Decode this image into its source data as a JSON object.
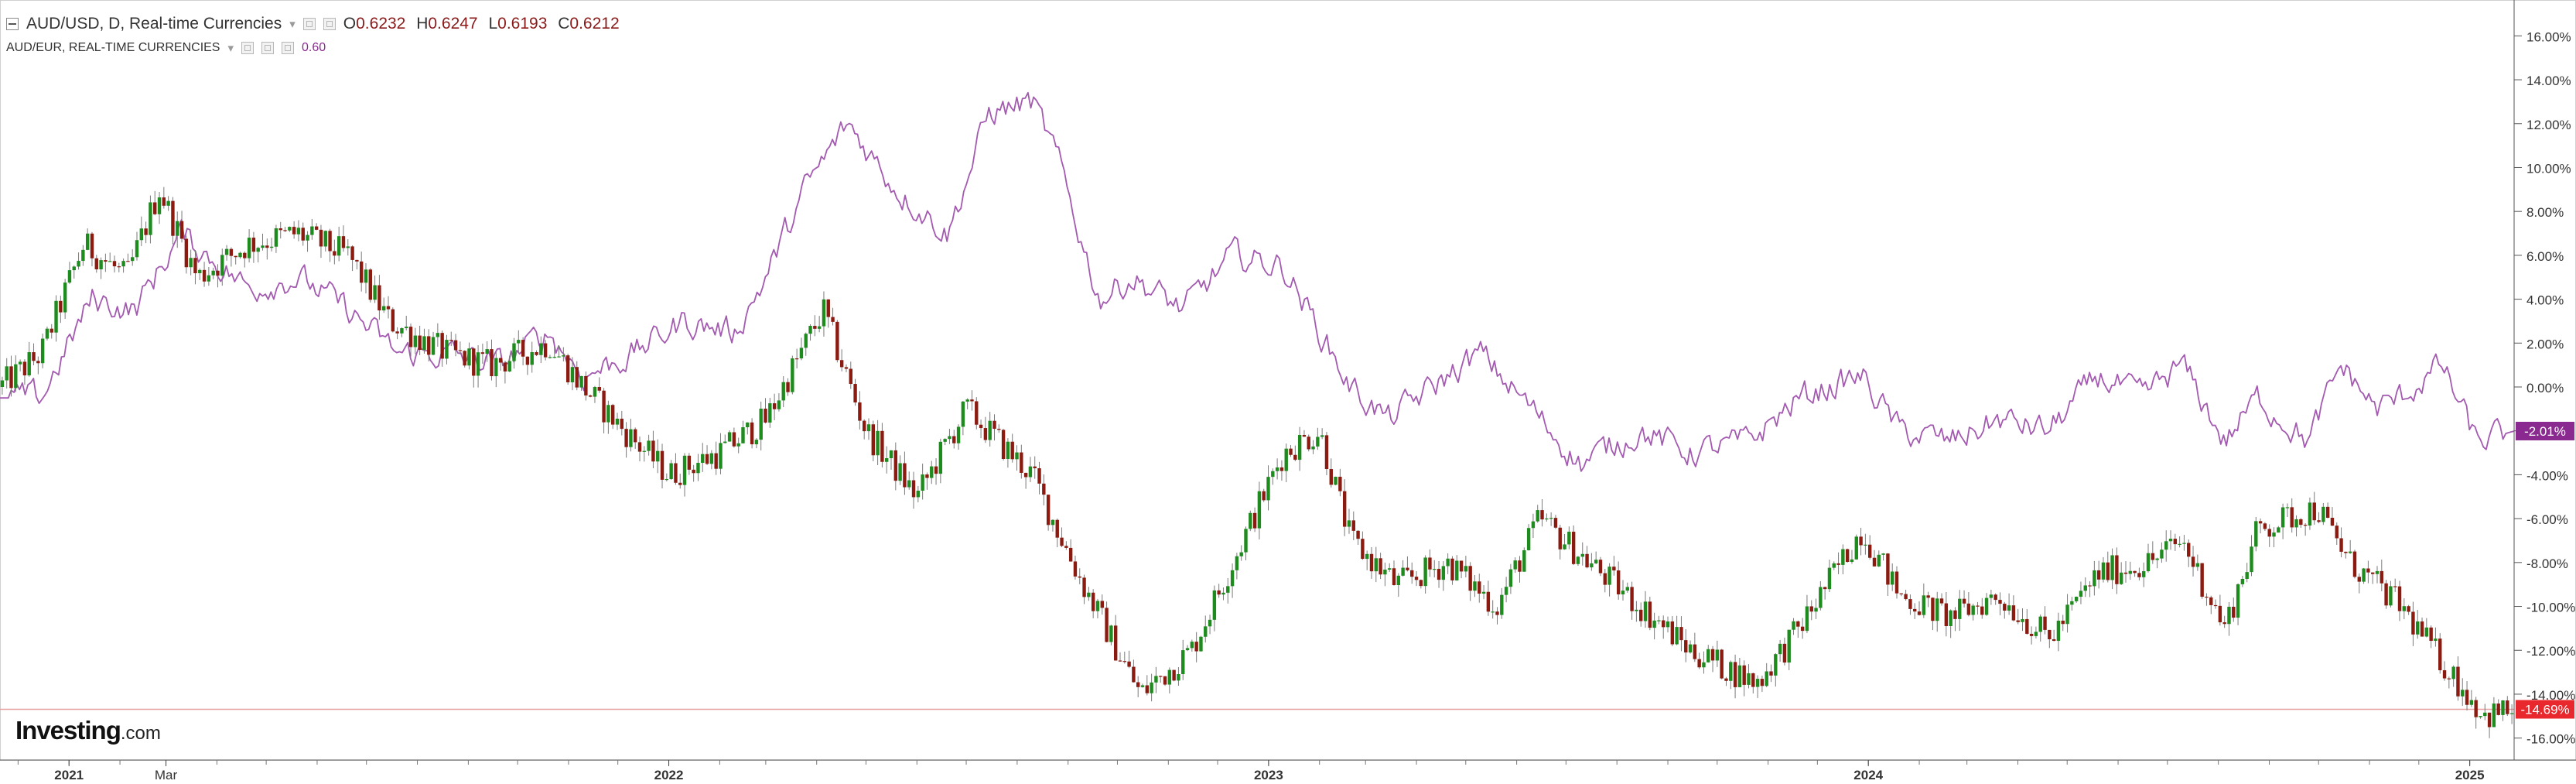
{
  "legend": {
    "symbol": "AUD/USD, D, Real-time Currencies",
    "open_key": "O",
    "open_val": "0.6232",
    "high_key": "H",
    "high_val": "0.6247",
    "low_key": "L",
    "low_val": "0.6193",
    "close_key": "C",
    "close_val": "0.6212",
    "compare_symbol": "AUD/EUR, REAL-TIME CURRENCIES",
    "compare_val": "0.60"
  },
  "brand": {
    "name": "Investing",
    "suffix": ".com"
  },
  "colors": {
    "up_candle": "#1e8b1e",
    "down_candle": "#8b1a10",
    "compare_line": "#a35ab0",
    "last_price_line": "#e8a0a0",
    "usd_badge": "#e8282c",
    "eur_badge": "#8a2a90",
    "axis_text": "#333333",
    "grid": "#e6e6e6"
  },
  "chart_data": {
    "type": "line",
    "title": "AUD/USD, D, Real-time Currencies",
    "y_axis_unit": "percent change",
    "ylim": [
      -17,
      17
    ],
    "y_ticks": [
      "16.00%",
      "14.00%",
      "12.00%",
      "10.00%",
      "8.00%",
      "6.00%",
      "4.00%",
      "2.00%",
      "0.00%",
      "-2.00%",
      "-4.00%",
      "-6.00%",
      "-8.00%",
      "-10.00%",
      "-12.00%",
      "-14.00%",
      "-16.00%"
    ],
    "y_tick_values": [
      16,
      14,
      12,
      10,
      8,
      6,
      4,
      2,
      0,
      -2,
      -4,
      -6,
      -8,
      -10,
      -12,
      -14,
      -16
    ],
    "x_range": [
      "2020-11-20",
      "2025-01-28"
    ],
    "x_ticks": [
      {
        "label": "2021",
        "date": "2021-01-01",
        "bold": true
      },
      {
        "label": "Mar",
        "date": "2021-03-01",
        "bold": false
      },
      {
        "label": "2022",
        "date": "2022-01-01",
        "bold": true
      },
      {
        "label": "2023",
        "date": "2023-01-01",
        "bold": true
      },
      {
        "label": "2024",
        "date": "2024-01-01",
        "bold": true
      },
      {
        "label": "2025",
        "date": "2025-01-01",
        "bold": true
      }
    ],
    "series": [
      {
        "name": "AUD/USD, D, Real-time Currencies",
        "style": "candlestick",
        "last_value_label": "-14.69%",
        "last_value": -14.69,
        "x": [
          "2020-11-20",
          "2020-12-15",
          "2021-01-10",
          "2021-02-05",
          "2021-02-25",
          "2021-03-20",
          "2021-04-20",
          "2021-05-20",
          "2021-06-20",
          "2021-07-15",
          "2021-08-20",
          "2021-09-15",
          "2021-10-20",
          "2021-11-10",
          "2021-12-05",
          "2022-01-01",
          "2022-02-01",
          "2022-03-01",
          "2022-04-05",
          "2022-05-01",
          "2022-06-01",
          "2022-07-01",
          "2022-08-10",
          "2022-09-10",
          "2022-10-15",
          "2022-11-15",
          "2022-12-10",
          "2023-01-10",
          "2023-02-01",
          "2023-02-20",
          "2023-03-20",
          "2023-04-20",
          "2023-05-20",
          "2023-06-15",
          "2023-07-15",
          "2023-08-15",
          "2023-09-15",
          "2023-10-25",
          "2023-11-20",
          "2023-12-28",
          "2024-01-20",
          "2024-02-20",
          "2024-03-20",
          "2024-04-20",
          "2024-05-20",
          "2024-06-20",
          "2024-07-10",
          "2024-08-05",
          "2024-08-25",
          "2024-09-30",
          "2024-10-20",
          "2024-11-20",
          "2024-12-20",
          "2025-01-10",
          "2025-01-28"
        ],
        "values": [
          0,
          1.5,
          6.5,
          5.0,
          9.0,
          5.0,
          6.5,
          7.0,
          6.0,
          3.0,
          1.5,
          1.0,
          2.0,
          0.0,
          -2.0,
          -4.0,
          -3.0,
          -1.5,
          3.5,
          -2.0,
          -5.0,
          -1.0,
          -4.0,
          -9.0,
          -14.0,
          -12.0,
          -8.0,
          -3.0,
          -2.0,
          -7.0,
          -9.0,
          -8.0,
          -10.0,
          -6.0,
          -8.0,
          -10.0,
          -12.0,
          -13.5,
          -11.0,
          -6.5,
          -9.5,
          -10.5,
          -9.5,
          -11.5,
          -8.5,
          -8.0,
          -7.0,
          -11.0,
          -6.5,
          -5.5,
          -8.0,
          -10.0,
          -13.0,
          -15.0,
          -14.69
        ]
      },
      {
        "name": "AUD/EUR, REAL-TIME CURRENCIES",
        "style": "line",
        "last_value_label": "-2.01%",
        "last_value": -2.01,
        "x": [
          "2020-11-20",
          "2020-12-15",
          "2021-01-15",
          "2021-02-10",
          "2021-03-10",
          "2021-04-20",
          "2021-05-20",
          "2021-06-20",
          "2021-07-20",
          "2021-08-20",
          "2021-09-20",
          "2021-10-20",
          "2021-11-10",
          "2021-12-10",
          "2022-01-10",
          "2022-02-10",
          "2022-03-01",
          "2022-03-25",
          "2022-04-20",
          "2022-05-20",
          "2022-06-20",
          "2022-07-15",
          "2022-08-10",
          "2022-08-25",
          "2022-09-20",
          "2022-10-10",
          "2022-11-10",
          "2022-12-10",
          "2023-01-10",
          "2023-01-25",
          "2023-02-20",
          "2023-03-15",
          "2023-04-20",
          "2023-05-10",
          "2023-06-10",
          "2023-07-10",
          "2023-08-15",
          "2023-09-15",
          "2023-10-20",
          "2023-11-20",
          "2023-12-28",
          "2024-01-20",
          "2024-02-20",
          "2024-03-20",
          "2024-04-20",
          "2024-05-20",
          "2024-06-15",
          "2024-07-10",
          "2024-08-05",
          "2024-08-25",
          "2024-09-25",
          "2024-10-15",
          "2024-11-05",
          "2024-11-20",
          "2024-12-15",
          "2025-01-05",
          "2025-01-28"
        ],
        "values": [
          -0.5,
          -0.5,
          4.0,
          3.5,
          7.0,
          4.5,
          5.0,
          3.5,
          1.5,
          1.5,
          1.0,
          2.5,
          0.5,
          1.5,
          3.0,
          2.5,
          5.0,
          9.0,
          12.0,
          9.0,
          7.0,
          12.5,
          13.0,
          10.5,
          4.0,
          5.0,
          3.5,
          6.0,
          5.5,
          3.5,
          0.0,
          -1.5,
          0.5,
          1.5,
          -1.0,
          -3.5,
          -2.0,
          -3.0,
          -2.5,
          -0.5,
          0.5,
          -2.0,
          -2.5,
          -1.5,
          -2.0,
          0.5,
          -0.5,
          1.0,
          -2.5,
          -0.5,
          -2.5,
          1.0,
          -1.0,
          -0.5,
          1.0,
          -2.5,
          -2.01
        ]
      }
    ],
    "grid": true,
    "legend_position": "top-left"
  }
}
